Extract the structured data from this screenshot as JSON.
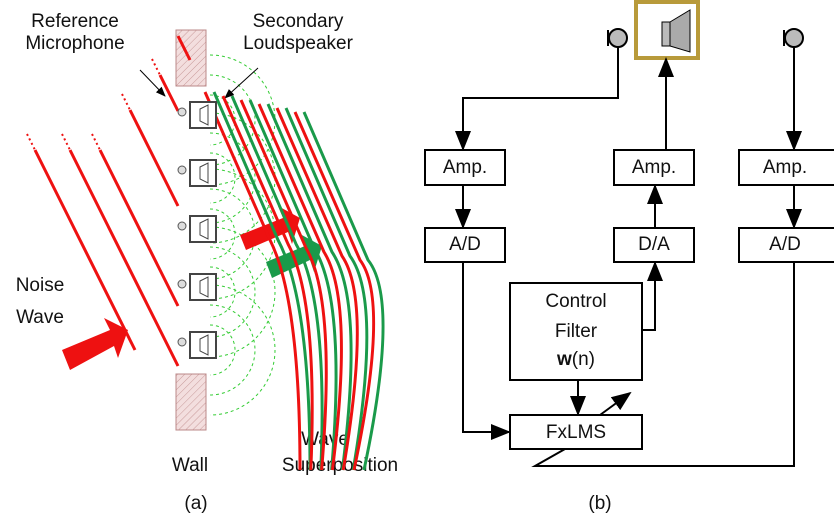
{
  "panel_a": {
    "reference_microphone": [
      "Reference",
      "Microphone"
    ],
    "secondary_loudspeaker": [
      "Secondary",
      "Loudspeaker"
    ],
    "noise_wave": [
      "Noise",
      "Wave"
    ],
    "wall": "Wall",
    "wave_superposition": [
      "Wave",
      "Superposition"
    ],
    "caption": "(a)"
  },
  "panel_b": {
    "blocks": {
      "amp_left": "Amp.",
      "ad_left": "A/D",
      "amp_mid": "Amp.",
      "da_mid": "D/A",
      "amp_right": "Amp.",
      "ad_right": "A/D"
    },
    "control_filter": {
      "lines": [
        "Control",
        "Filter"
      ],
      "weight_bold": "w",
      "weight_rest": "(n)"
    },
    "fxlms": "FxLMS",
    "caption": "(b)"
  }
}
